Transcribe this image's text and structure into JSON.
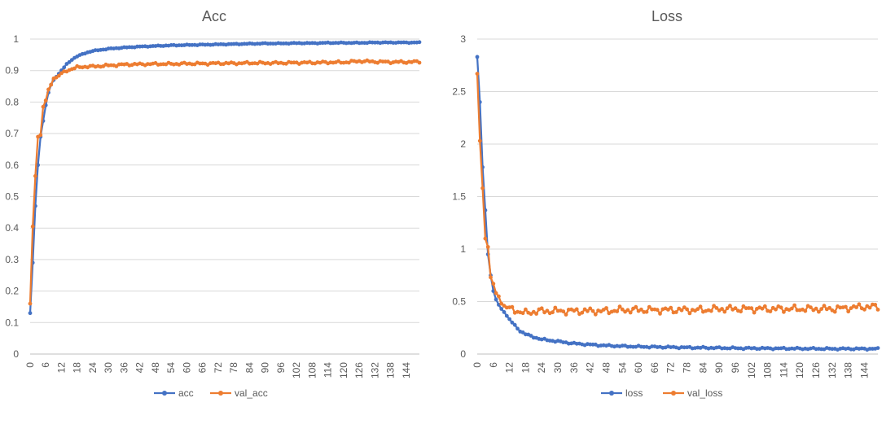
{
  "chart_data": [
    {
      "type": "line",
      "title": "Acc",
      "xlabel": "",
      "ylabel": "",
      "ylim": [
        0,
        1
      ],
      "y_ticks": [
        "0",
        "0.1",
        "0.2",
        "0.3",
        "0.4",
        "0.5",
        "0.6",
        "0.7",
        "0.8",
        "0.9",
        "1"
      ],
      "x_ticks": [
        "0",
        "6",
        "12",
        "18",
        "24",
        "30",
        "36",
        "42",
        "48",
        "54",
        "60",
        "66",
        "72",
        "78",
        "84",
        "90",
        "96",
        "102",
        "108",
        "114",
        "120",
        "126",
        "132",
        "138",
        "144"
      ],
      "x_range": [
        0,
        149
      ],
      "grid": true,
      "legend_position": "bottom",
      "series": [
        {
          "name": "acc",
          "color": "#4472C4",
          "points": [
            [
              0,
              0.13
            ],
            [
              1,
              0.29
            ],
            [
              2,
              0.47
            ],
            [
              3,
              0.6
            ],
            [
              4,
              0.69
            ],
            [
              5,
              0.74
            ],
            [
              6,
              0.79
            ],
            [
              7,
              0.83
            ],
            [
              8,
              0.855
            ],
            [
              9,
              0.87
            ],
            [
              10,
              0.88
            ],
            [
              12,
              0.9
            ],
            [
              14,
              0.92
            ],
            [
              16,
              0.935
            ],
            [
              18,
              0.945
            ],
            [
              20,
              0.952
            ],
            [
              22,
              0.958
            ],
            [
              24,
              0.962
            ],
            [
              27,
              0.966
            ],
            [
              30,
              0.969
            ],
            [
              36,
              0.973
            ],
            [
              42,
              0.976
            ],
            [
              48,
              0.978
            ],
            [
              54,
              0.98
            ],
            [
              60,
              0.981
            ],
            [
              66,
              0.982
            ],
            [
              72,
              0.983
            ],
            [
              78,
              0.984
            ],
            [
              84,
              0.985
            ],
            [
              90,
              0.986
            ],
            [
              96,
              0.986
            ],
            [
              102,
              0.987
            ],
            [
              108,
              0.987
            ],
            [
              114,
              0.988
            ],
            [
              120,
              0.988
            ],
            [
              126,
              0.988
            ],
            [
              132,
              0.989
            ],
            [
              138,
              0.989
            ],
            [
              144,
              0.989
            ],
            [
              149,
              0.989
            ]
          ]
        },
        {
          "name": "val_acc",
          "color": "#ED7D31",
          "points": [
            [
              0,
              0.16
            ],
            [
              1,
              0.405
            ],
            [
              2,
              0.565
            ],
            [
              3,
              0.69
            ],
            [
              4,
              0.695
            ],
            [
              5,
              0.785
            ],
            [
              6,
              0.805
            ],
            [
              7,
              0.84
            ],
            [
              8,
              0.855
            ],
            [
              9,
              0.875
            ],
            [
              10,
              0.878
            ],
            [
              12,
              0.89
            ],
            [
              14,
              0.9
            ],
            [
              16,
              0.905
            ],
            [
              18,
              0.91
            ],
            [
              20,
              0.912
            ],
            [
              24,
              0.913
            ],
            [
              30,
              0.916
            ],
            [
              36,
              0.919
            ],
            [
              42,
              0.92
            ],
            [
              48,
              0.921
            ],
            [
              54,
              0.921
            ],
            [
              60,
              0.922
            ],
            [
              66,
              0.922
            ],
            [
              72,
              0.923
            ],
            [
              78,
              0.923
            ],
            [
              84,
              0.924
            ],
            [
              90,
              0.924
            ],
            [
              96,
              0.924
            ],
            [
              102,
              0.925
            ],
            [
              108,
              0.925
            ],
            [
              114,
              0.926
            ],
            [
              120,
              0.926
            ],
            [
              126,
              0.93
            ],
            [
              132,
              0.928
            ],
            [
              138,
              0.927
            ],
            [
              144,
              0.927
            ],
            [
              149,
              0.928
            ]
          ]
        }
      ]
    },
    {
      "type": "line",
      "title": "Loss",
      "xlabel": "",
      "ylabel": "",
      "ylim": [
        0,
        3
      ],
      "y_ticks": [
        "0",
        "0.5",
        "1",
        "1.5",
        "2",
        "2.5",
        "3"
      ],
      "x_ticks": [
        "0",
        "6",
        "12",
        "18",
        "24",
        "30",
        "36",
        "42",
        "48",
        "54",
        "60",
        "66",
        "72",
        "78",
        "84",
        "90",
        "96",
        "102",
        "108",
        "114",
        "120",
        "126",
        "132",
        "138",
        "144"
      ],
      "x_range": [
        0,
        149
      ],
      "grid": true,
      "legend_position": "bottom",
      "series": [
        {
          "name": "loss",
          "color": "#4472C4",
          "points": [
            [
              0,
              2.83
            ],
            [
              1,
              2.4
            ],
            [
              2,
              1.78
            ],
            [
              3,
              1.37
            ],
            [
              4,
              0.95
            ],
            [
              5,
              0.75
            ],
            [
              6,
              0.6
            ],
            [
              7,
              0.52
            ],
            [
              8,
              0.47
            ],
            [
              9,
              0.43
            ],
            [
              10,
              0.4
            ],
            [
              12,
              0.33
            ],
            [
              14,
              0.27
            ],
            [
              16,
              0.22
            ],
            [
              18,
              0.19
            ],
            [
              20,
              0.17
            ],
            [
              24,
              0.14
            ],
            [
              30,
              0.12
            ],
            [
              36,
              0.1
            ],
            [
              42,
              0.09
            ],
            [
              48,
              0.08
            ],
            [
              54,
              0.075
            ],
            [
              60,
              0.07
            ],
            [
              66,
              0.068
            ],
            [
              72,
              0.065
            ],
            [
              78,
              0.062
            ],
            [
              84,
              0.06
            ],
            [
              90,
              0.058
            ],
            [
              96,
              0.056
            ],
            [
              102,
              0.055
            ],
            [
              108,
              0.054
            ],
            [
              114,
              0.053
            ],
            [
              120,
              0.052
            ],
            [
              126,
              0.051
            ],
            [
              132,
              0.05
            ],
            [
              138,
              0.05
            ],
            [
              144,
              0.05
            ],
            [
              149,
              0.05
            ]
          ]
        },
        {
          "name": "val_loss",
          "color": "#ED7D31",
          "points": [
            [
              0,
              2.67
            ],
            [
              1,
              2.03
            ],
            [
              2,
              1.58
            ],
            [
              3,
              1.1
            ],
            [
              4,
              1.02
            ],
            [
              5,
              0.73
            ],
            [
              6,
              0.67
            ],
            [
              7,
              0.58
            ],
            [
              8,
              0.55
            ],
            [
              9,
              0.48
            ],
            [
              10,
              0.46
            ],
            [
              12,
              0.43
            ],
            [
              14,
              0.42
            ],
            [
              16,
              0.4
            ],
            [
              18,
              0.39
            ],
            [
              20,
              0.4
            ],
            [
              24,
              0.41
            ],
            [
              30,
              0.41
            ],
            [
              36,
              0.41
            ],
            [
              42,
              0.41
            ],
            [
              48,
              0.41
            ],
            [
              54,
              0.42
            ],
            [
              60,
              0.42
            ],
            [
              66,
              0.42
            ],
            [
              72,
              0.42
            ],
            [
              78,
              0.42
            ],
            [
              84,
              0.42
            ],
            [
              90,
              0.43
            ],
            [
              96,
              0.43
            ],
            [
              102,
              0.43
            ],
            [
              108,
              0.43
            ],
            [
              114,
              0.43
            ],
            [
              120,
              0.43
            ],
            [
              126,
              0.43
            ],
            [
              132,
              0.43
            ],
            [
              138,
              0.44
            ],
            [
              144,
              0.45
            ],
            [
              149,
              0.45
            ]
          ]
        }
      ]
    }
  ]
}
